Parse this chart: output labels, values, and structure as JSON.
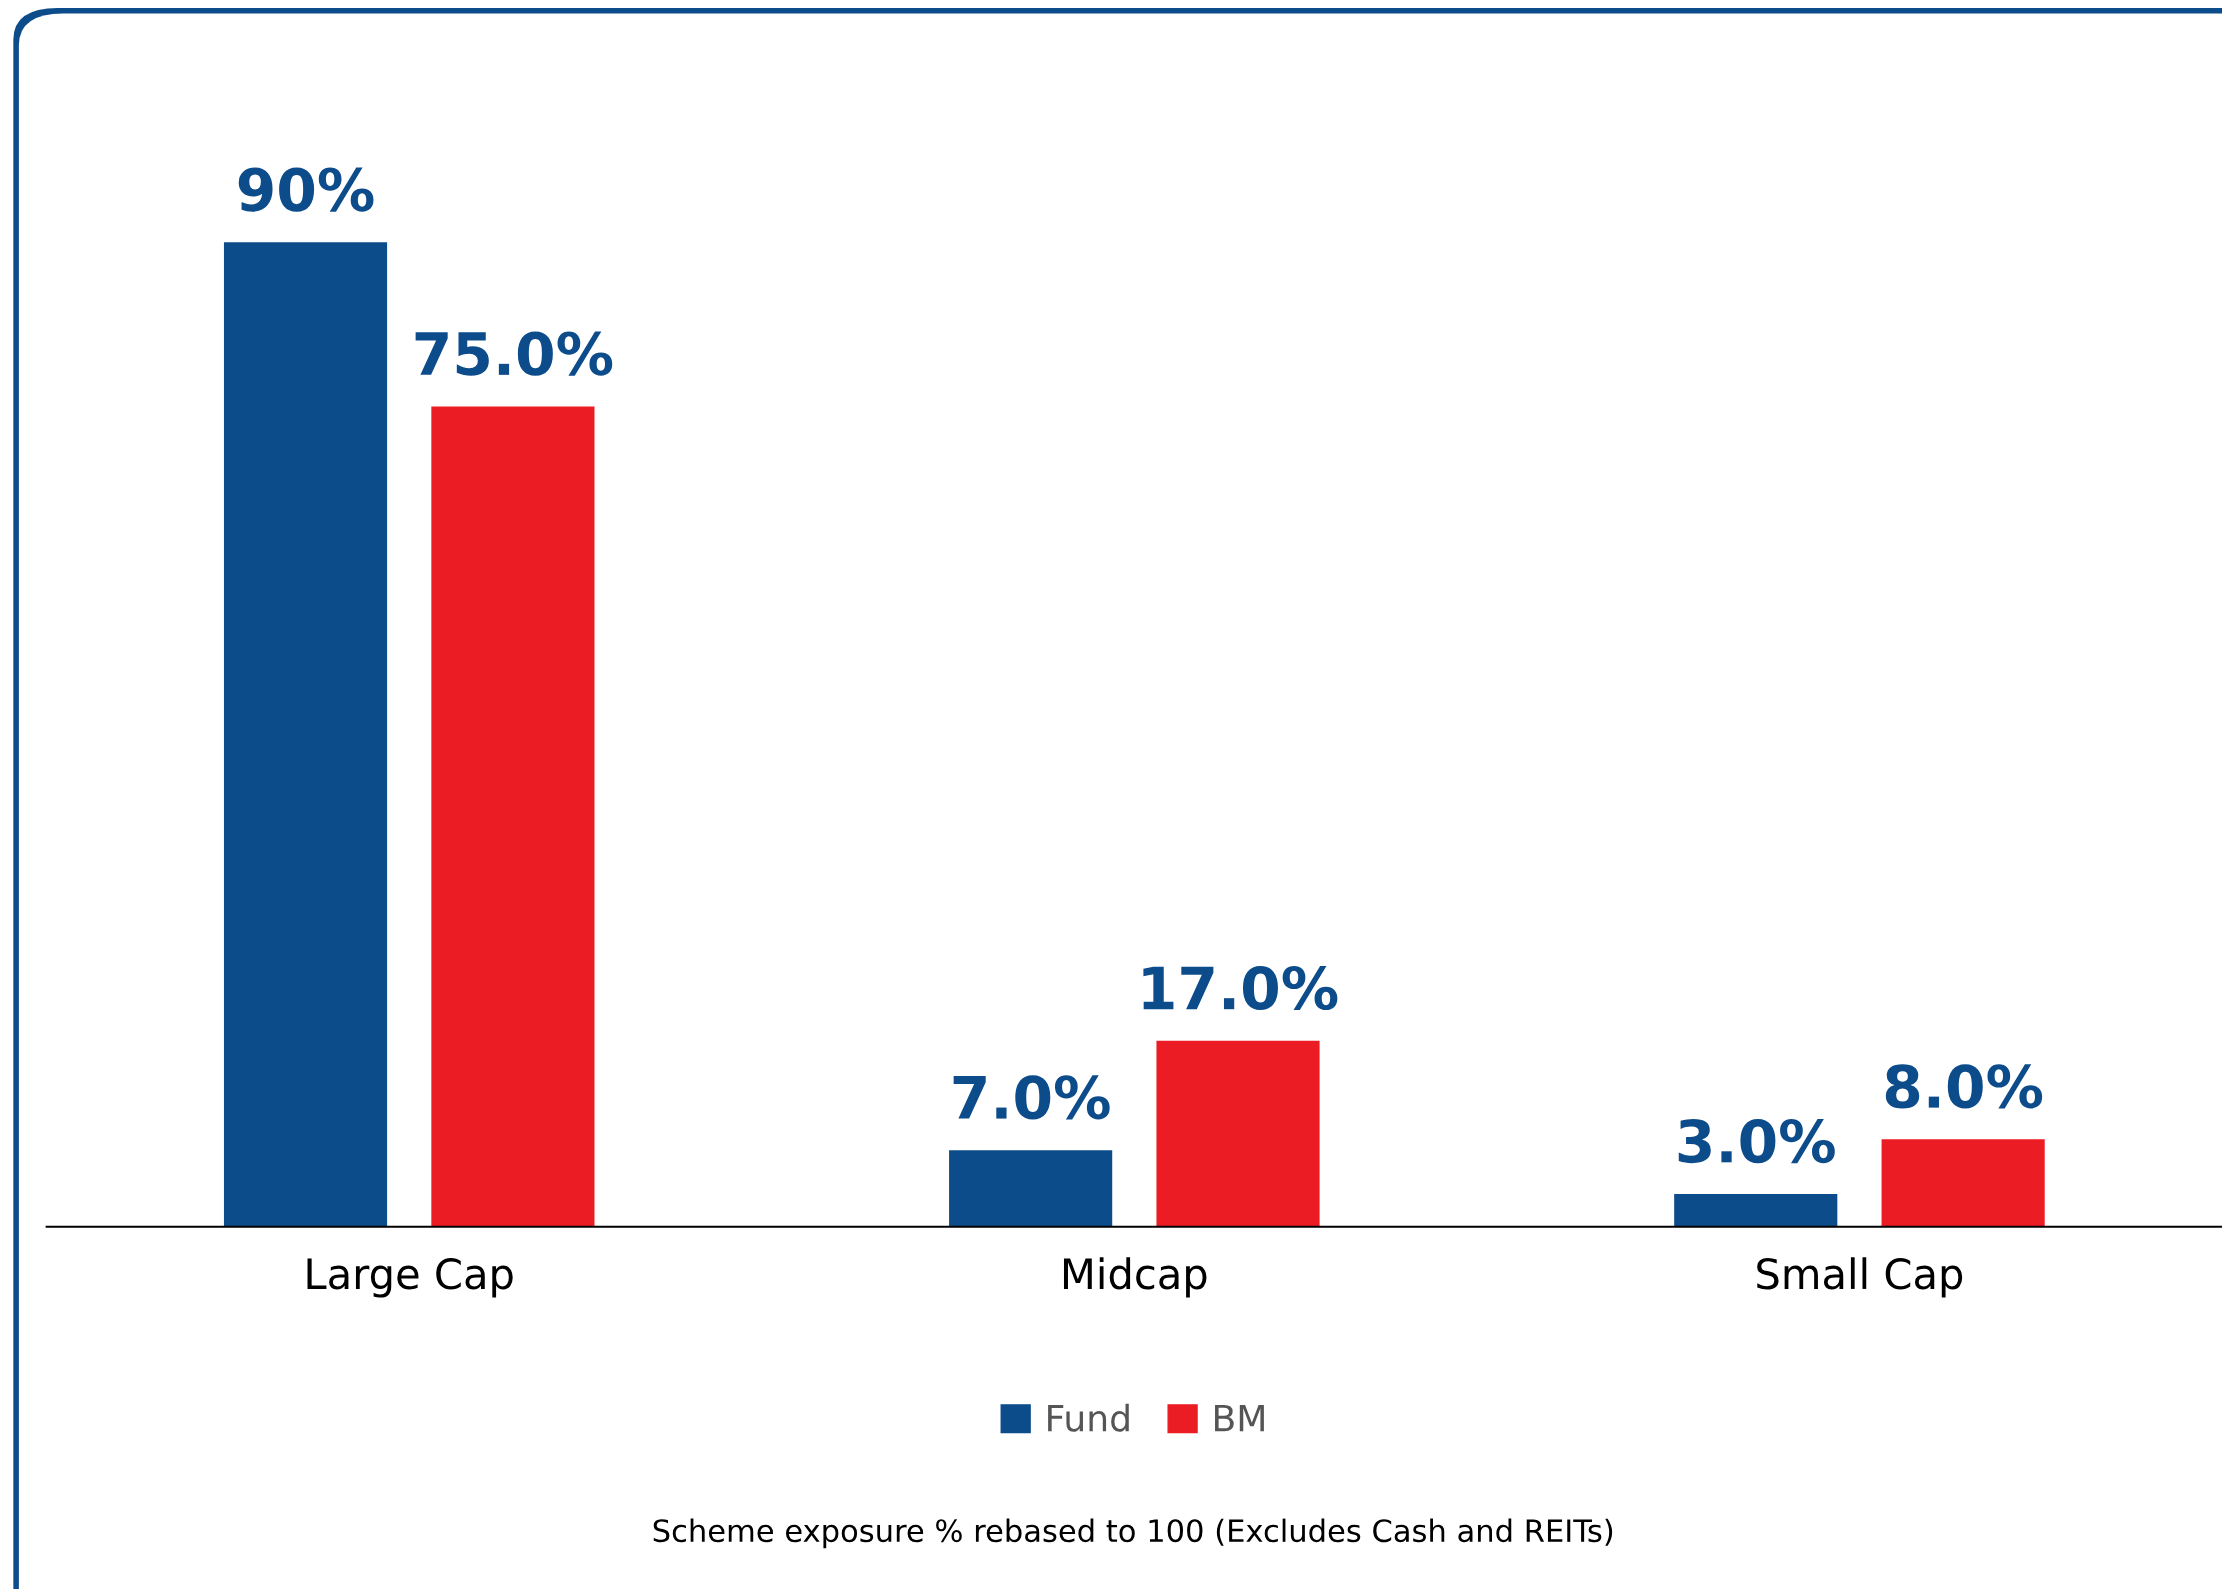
{
  "chart_data": {
    "type": "bar",
    "categories": [
      "Large Cap",
      "Midcap",
      "Small Cap"
    ],
    "series": [
      {
        "name": "Fund",
        "color": "#0d4c8a",
        "values": [
          90,
          7.0,
          3.0
        ],
        "value_labels": [
          "90%",
          "7.0%",
          "3.0%"
        ]
      },
      {
        "name": "BM",
        "color": "#ec1c24",
        "values": [
          75.0,
          17.0,
          8.0
        ],
        "value_labels": [
          "75.0%",
          "17.0%",
          "8.0%"
        ]
      }
    ],
    "legend": "bottom",
    "grid": false,
    "annotations": [
      "Scheme exposure % rebased to 100 (Excludes Cash and REITs)"
    ]
  }
}
